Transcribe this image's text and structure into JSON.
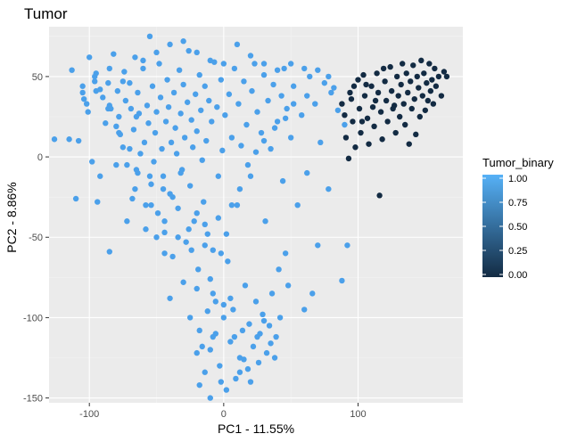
{
  "chart_data": {
    "type": "scatter",
    "title": "Tumor",
    "xlabel": "PC1 - 11.55%",
    "ylabel": "PC2 - 8.86%",
    "xlim": [
      -130,
      178
    ],
    "ylim": [
      -153,
      81
    ],
    "x_ticks": [
      -100,
      0,
      100
    ],
    "y_ticks": [
      -150,
      -100,
      -50,
      0,
      50
    ],
    "grid": true,
    "legend": {
      "title": "Tumor_binary",
      "placement": "right",
      "ticks": [
        0.0,
        0.25,
        0.5,
        0.75,
        1.0
      ],
      "tick_labels": [
        "0.00",
        "0.25",
        "0.50",
        "0.75",
        "1.00"
      ],
      "color_low": "#132b43",
      "color_high": "#56b1f7"
    },
    "point_colors": {
      "tumor_1": "#4ba0ea",
      "tumor_0": "#132b43"
    },
    "series": [
      {
        "value": 1.0,
        "points": [
          [
            -126,
            11
          ],
          [
            -113,
            54
          ],
          [
            -110,
            -26
          ],
          [
            -105,
            44
          ],
          [
            -104,
            36
          ],
          [
            -102,
            33
          ],
          [
            -101,
            28
          ],
          [
            -100,
            62
          ],
          [
            -96,
            47
          ],
          [
            -95,
            41
          ],
          [
            -94,
            -28
          ],
          [
            -90,
            37
          ],
          [
            -88,
            21
          ],
          [
            -86,
            46
          ],
          [
            -85,
            -59
          ],
          [
            -85,
            32
          ],
          [
            -84,
            30
          ],
          [
            -82,
            64
          ],
          [
            -80,
            19
          ],
          [
            -79,
            41
          ],
          [
            -78,
            25
          ],
          [
            -77,
            14
          ],
          [
            -75,
            6
          ],
          [
            -74,
            53
          ],
          [
            -73,
            35
          ],
          [
            -72,
            -5
          ],
          [
            -70,
            46
          ],
          [
            -69,
            30
          ],
          [
            -68,
            -26
          ],
          [
            -67,
            17
          ],
          [
            -66,
            62
          ],
          [
            -65,
            -8
          ],
          [
            -64,
            40
          ],
          [
            -63,
            27
          ],
          [
            -62,
            2
          ],
          [
            -60,
            55
          ],
          [
            -59,
            9
          ],
          [
            -58,
            -30
          ],
          [
            -57,
            32
          ],
          [
            -56,
            21
          ],
          [
            -55,
            75
          ],
          [
            -54,
            -17
          ],
          [
            -53,
            44
          ],
          [
            -52,
            -3
          ],
          [
            -51,
            15
          ],
          [
            -50,
            28
          ],
          [
            -49,
            -35
          ],
          [
            -48,
            58
          ],
          [
            -47,
            37
          ],
          [
            -46,
            5
          ],
          [
            -45,
            -12
          ],
          [
            -44,
            -47
          ],
          [
            -43,
            22
          ],
          [
            -42,
            48
          ],
          [
            -41,
            31
          ],
          [
            -40,
            -23
          ],
          [
            -39,
            9
          ],
          [
            -38,
            -62
          ],
          [
            -37,
            40
          ],
          [
            -36,
            18
          ],
          [
            -35,
            2
          ],
          [
            -34,
            -32
          ],
          [
            -33,
            54
          ],
          [
            -32,
            27
          ],
          [
            -31,
            -8
          ],
          [
            -30,
            45
          ],
          [
            -29,
            12
          ],
          [
            -28,
            -53
          ],
          [
            -27,
            34
          ],
          [
            -26,
            66
          ],
          [
            -25,
            -18
          ],
          [
            -24,
            23
          ],
          [
            -23,
            6
          ],
          [
            -22,
            -40
          ],
          [
            -21,
            39
          ],
          [
            -20,
            16
          ],
          [
            -19,
            -70
          ],
          [
            -18,
            51
          ],
          [
            -17,
            29
          ],
          [
            -16,
            -2
          ],
          [
            -15,
            -28
          ],
          [
            -14,
            44
          ],
          [
            -13,
            10
          ],
          [
            -12,
            -48
          ],
          [
            -11,
            35
          ],
          [
            -10,
            -120
          ],
          [
            -9,
            22
          ],
          [
            -8,
            -85
          ],
          [
            -7,
            59
          ],
          [
            -6,
            -110
          ],
          [
            -5,
            31
          ],
          [
            -4,
            -12
          ],
          [
            -3,
            -130
          ],
          [
            -2,
            48
          ],
          [
            -1,
            4
          ],
          [
            0,
            -100
          ],
          [
            1,
            26
          ],
          [
            2,
            -145
          ],
          [
            3,
            -65
          ],
          [
            4,
            39
          ],
          [
            5,
            -115
          ],
          [
            6,
            12
          ],
          [
            7,
            -95
          ],
          [
            8,
            55
          ],
          [
            9,
            -138
          ],
          [
            10,
            -30
          ],
          [
            11,
            33
          ],
          [
            12,
            -125
          ],
          [
            13,
            7
          ],
          [
            14,
            -108
          ],
          [
            15,
            47
          ],
          [
            16,
            -80
          ],
          [
            17,
            20
          ],
          [
            18,
            -132
          ],
          [
            19,
            -104
          ],
          [
            20,
            -12
          ],
          [
            21,
            41
          ],
          [
            22,
            -118
          ],
          [
            23,
            58
          ],
          [
            24,
            -90
          ],
          [
            25,
            28
          ],
          [
            26,
            -128
          ],
          [
            27,
            -110
          ],
          [
            28,
            15
          ],
          [
            29,
            -98
          ],
          [
            30,
            51
          ],
          [
            31,
            -40
          ],
          [
            32,
            -122
          ],
          [
            33,
            35
          ],
          [
            34,
            -105
          ],
          [
            35,
            5
          ],
          [
            36,
            -85
          ],
          [
            37,
            45
          ],
          [
            38,
            -125
          ],
          [
            39,
            -112
          ],
          [
            40,
            22
          ],
          [
            41,
            -70
          ],
          [
            42,
            -100
          ],
          [
            43,
            38
          ],
          [
            44,
            -15
          ],
          [
            45,
            55
          ],
          [
            46,
            -60
          ],
          [
            47,
            30
          ],
          [
            48,
            -80
          ],
          [
            50,
            12
          ],
          [
            52,
            44
          ],
          [
            55,
            -30
          ],
          [
            58,
            26
          ],
          [
            60,
            -95
          ],
          [
            62,
            -10
          ],
          [
            64,
            50
          ],
          [
            66,
            -85
          ],
          [
            68,
            33
          ],
          [
            70,
            -55
          ],
          [
            72,
            9
          ],
          [
            75,
            46
          ],
          [
            78,
            -20
          ],
          [
            80,
            40
          ],
          [
            85,
            29
          ],
          [
            88,
            -77
          ],
          [
            90,
            20
          ],
          [
            92,
            -55
          ],
          [
            -98,
            -3
          ],
          [
            -108,
            10
          ],
          [
            -92,
            -12
          ],
          [
            -80,
            -5
          ],
          [
            -72,
            -40
          ],
          [
            -66,
            -20
          ],
          [
            -58,
            -45
          ],
          [
            -50,
            -50
          ],
          [
            -44,
            -60
          ],
          [
            -38,
            -25
          ],
          [
            -32,
            -10
          ],
          [
            -26,
            -45
          ],
          [
            -20,
            -35
          ],
          [
            -14,
            -55
          ],
          [
            -8,
            -58
          ],
          [
            -2,
            -60
          ],
          [
            2,
            -48
          ],
          [
            -40,
            -88
          ],
          [
            -30,
            -78
          ],
          [
            -20,
            -82
          ],
          [
            -10,
            -76
          ],
          [
            0,
            -92
          ],
          [
            5,
            -88
          ],
          [
            -25,
            -100
          ],
          [
            -18,
            -108
          ],
          [
            -12,
            -96
          ],
          [
            -6,
            -90
          ],
          [
            -20,
            -122
          ],
          [
            -14,
            -134
          ],
          [
            -8,
            -112
          ],
          [
            -2,
            -140
          ],
          [
            -10,
            -150
          ],
          [
            -18,
            -142
          ],
          [
            -16,
            -118
          ],
          [
            15,
            -126
          ],
          [
            20,
            -140
          ],
          [
            25,
            -112
          ],
          [
            30,
            -102
          ],
          [
            35,
            -116
          ],
          [
            8,
            -112
          ],
          [
            12,
            -134
          ],
          [
            -45,
            -20
          ],
          [
            -55,
            -12
          ],
          [
            -65,
            25
          ],
          [
            -75,
            47
          ],
          [
            -85,
            55
          ],
          [
            -95,
            52
          ],
          [
            -105,
            40
          ],
          [
            -115,
            11
          ],
          [
            -60,
            60
          ],
          [
            -50,
            65
          ],
          [
            -40,
            70
          ],
          [
            -30,
            72
          ],
          [
            -20,
            65
          ],
          [
            -10,
            60
          ],
          [
            0,
            58
          ],
          [
            10,
            70
          ],
          [
            20,
            63
          ],
          [
            30,
            58
          ],
          [
            40,
            54
          ],
          [
            50,
            58
          ],
          [
            60,
            55
          ],
          [
            70,
            54
          ],
          [
            78,
            50
          ],
          [
            82,
            43
          ],
          [
            62,
            38
          ],
          [
            52,
            33
          ],
          [
            46,
            24
          ],
          [
            38,
            18
          ],
          [
            30,
            10
          ],
          [
            24,
            3
          ],
          [
            18,
            -5
          ],
          [
            12,
            -20
          ],
          [
            6,
            -30
          ],
          [
            -4,
            -38
          ],
          [
            -14,
            -42
          ],
          [
            -24,
            -58
          ],
          [
            -34,
            -50
          ],
          [
            -44,
            -40
          ],
          [
            -54,
            -30
          ],
          [
            -64,
            -10
          ],
          [
            -70,
            5
          ],
          [
            -78,
            15
          ],
          [
            -86,
            30
          ],
          [
            -92,
            42
          ],
          [
            -96,
            50
          ]
        ]
      },
      {
        "value": 0.0,
        "points": [
          [
            88,
            33
          ],
          [
            90,
            26
          ],
          [
            91,
            12
          ],
          [
            93,
            -1
          ],
          [
            94,
            40
          ],
          [
            96,
            22
          ],
          [
            98,
            6
          ],
          [
            100,
            48
          ],
          [
            101,
            30
          ],
          [
            102,
            15
          ],
          [
            104,
            51
          ],
          [
            105,
            38
          ],
          [
            107,
            24
          ],
          [
            108,
            8
          ],
          [
            110,
            44
          ],
          [
            111,
            31
          ],
          [
            112,
            19
          ],
          [
            114,
            52
          ],
          [
            115,
            40
          ],
          [
            116,
            -24
          ],
          [
            117,
            28
          ],
          [
            118,
            11
          ],
          [
            120,
            47
          ],
          [
            121,
            35
          ],
          [
            122,
            22
          ],
          [
            124,
            56
          ],
          [
            125,
            41
          ],
          [
            126,
            30
          ],
          [
            128,
            15
          ],
          [
            129,
            50
          ],
          [
            130,
            38
          ],
          [
            131,
            25
          ],
          [
            132,
            45
          ],
          [
            133,
            58
          ],
          [
            134,
            33
          ],
          [
            135,
            20
          ],
          [
            136,
            52
          ],
          [
            137,
            40
          ],
          [
            138,
            8
          ],
          [
            139,
            47
          ],
          [
            140,
            30
          ],
          [
            141,
            57
          ],
          [
            142,
            36
          ],
          [
            143,
            14
          ],
          [
            144,
            50
          ],
          [
            145,
            43
          ],
          [
            146,
            25
          ],
          [
            147,
            60
          ],
          [
            148,
            38
          ],
          [
            149,
            52
          ],
          [
            150,
            29
          ],
          [
            151,
            46
          ],
          [
            152,
            35
          ],
          [
            153,
            58
          ],
          [
            154,
            41
          ],
          [
            155,
            48
          ],
          [
            156,
            33
          ],
          [
            157,
            55
          ],
          [
            158,
            44
          ],
          [
            160,
            50
          ],
          [
            162,
            38
          ],
          [
            164,
            53
          ],
          [
            166,
            50
          ],
          [
            127,
            32
          ],
          [
            119,
            55
          ],
          [
            113,
            35
          ],
          [
            106,
            45
          ],
          [
            103,
            22
          ],
          [
            97,
            44
          ],
          [
            95,
            36
          ]
        ]
      }
    ]
  }
}
